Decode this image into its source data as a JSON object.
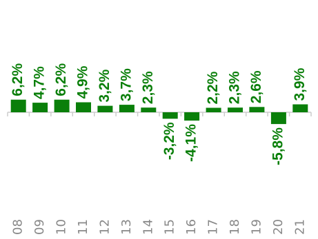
{
  "colors": {
    "bar": "#0a7f0a",
    "label": "#0a7f0a",
    "axis": "#cccccc",
    "tick_text": "#888888"
  },
  "chart_data": {
    "type": "bar",
    "categories": [
      "08",
      "09",
      "10",
      "11",
      "12",
      "13",
      "14",
      "15",
      "16",
      "17",
      "18",
      "19",
      "20",
      "21"
    ],
    "values": [
      6.2,
      4.7,
      6.2,
      4.9,
      3.2,
      3.7,
      2.3,
      -3.2,
      -4.1,
      2.2,
      2.3,
      2.6,
      -5.8,
      3.9
    ],
    "data_labels": [
      "6,2%",
      "4,7%",
      "6,2%",
      "4,9%",
      "3,2%",
      "3,7%",
      "2,3%",
      "-3,2%",
      "-4,1%",
      "2,2%",
      "2,3%",
      "2,6%",
      "-5,8%",
      "3,9%"
    ],
    "title": "",
    "xlabel": "",
    "ylabel": "",
    "ylim": [
      -6.5,
      6.5
    ],
    "grid": false,
    "legend": "none"
  }
}
